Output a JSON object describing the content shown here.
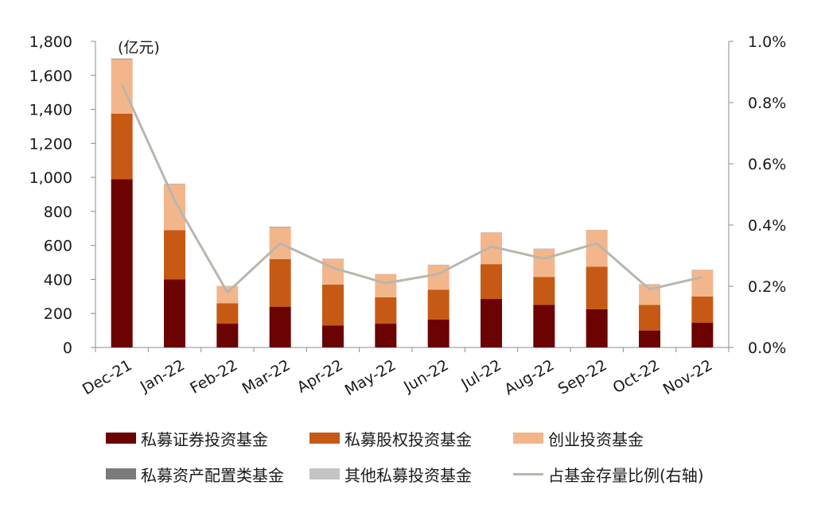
{
  "chart_data": {
    "type": "bar",
    "stacked": true,
    "unit_label": "(亿元)",
    "categories": [
      "Dec-21",
      "Jan-22",
      "Feb-22",
      "Mar-22",
      "Apr-22",
      "May-22",
      "Jun-22",
      "Jul-22",
      "Aug-22",
      "Sep-22",
      "Oct-22",
      "Nov-22"
    ],
    "series": [
      {
        "name": "私募证券投资基金",
        "color": "#6b0303",
        "values": [
          990,
          400,
          140,
          240,
          130,
          140,
          165,
          285,
          250,
          225,
          100,
          145
        ]
      },
      {
        "name": "私募股权投资基金",
        "color": "#c65a14",
        "values": [
          385,
          290,
          120,
          280,
          240,
          155,
          175,
          205,
          165,
          250,
          150,
          155
        ]
      },
      {
        "name": "创业投资基金",
        "color": "#f3b68b",
        "values": [
          320,
          270,
          100,
          185,
          150,
          135,
          145,
          185,
          165,
          215,
          120,
          155
        ]
      },
      {
        "name": "私募资产配置类基金",
        "color": "#7a7a7a",
        "values": [
          3,
          2,
          1,
          3,
          1,
          1,
          1,
          1,
          1,
          1,
          1,
          1
        ]
      },
      {
        "name": "其他私募投资基金",
        "color": "#c4c4c4",
        "values": [
          2,
          1,
          1,
          2,
          1,
          1,
          1,
          1,
          1,
          1,
          2,
          1
        ]
      }
    ],
    "line_series": {
      "name": "占基金存量比例(右轴)",
      "color": "#b9b6ad",
      "axis": "right",
      "values": [
        0.86,
        0.48,
        0.18,
        0.34,
        0.26,
        0.21,
        0.24,
        0.33,
        0.29,
        0.34,
        0.19,
        0.23
      ]
    },
    "ylim": [
      0,
      1800
    ],
    "yticks": [
      0,
      200,
      400,
      600,
      800,
      1000,
      1200,
      1400,
      1600,
      1800
    ],
    "ytick_labels": [
      "0",
      "200",
      "400",
      "600",
      "800",
      "1,000",
      "1,200",
      "1,400",
      "1,600",
      "1,800"
    ],
    "y2lim": [
      0,
      1.0
    ],
    "y2ticks": [
      0,
      0.2,
      0.4,
      0.6,
      0.8,
      1.0
    ],
    "y2tick_labels": [
      "0.0%",
      "0.2%",
      "0.4%",
      "0.6%",
      "0.8%",
      "1.0%"
    ],
    "grid": false,
    "legend_position": "bottom"
  }
}
